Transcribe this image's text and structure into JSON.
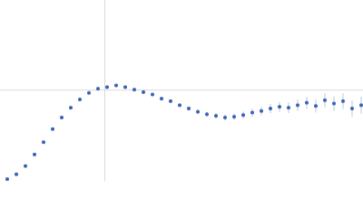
{
  "chart_data": {
    "type": "scatter",
    "xlim": [
      0,
      6
    ],
    "ylim": [
      0,
      2.2
    ],
    "xgrid": [
      1.732
    ],
    "ygrid": [
      1.104
    ],
    "grid": true,
    "series": [
      {
        "color": "#3a64b8",
        "error_color": "#a9bbdc",
        "x": [
          0.12,
          0.27,
          0.42,
          0.57,
          0.72,
          0.87,
          1.02,
          1.17,
          1.32,
          1.47,
          1.62,
          1.77,
          1.92,
          2.07,
          2.22,
          2.37,
          2.52,
          2.67,
          2.82,
          2.97,
          3.12,
          3.27,
          3.42,
          3.57,
          3.72,
          3.87,
          4.02,
          4.17,
          4.32,
          4.47,
          4.62,
          4.77,
          4.92,
          5.07,
          5.22,
          5.37,
          5.52,
          5.67,
          5.82,
          5.97
        ],
        "values": [
          0.02,
          0.08,
          0.18,
          0.32,
          0.47,
          0.63,
          0.77,
          0.89,
          0.99,
          1.07,
          1.12,
          1.14,
          1.16,
          1.14,
          1.11,
          1.08,
          1.05,
          1.0,
          0.97,
          0.92,
          0.88,
          0.84,
          0.81,
          0.79,
          0.77,
          0.78,
          0.8,
          0.83,
          0.85,
          0.88,
          0.9,
          0.89,
          0.92,
          0.95,
          0.91,
          0.98,
          0.94,
          0.97,
          0.88,
          0.92
        ],
        "errors": [
          0.005,
          0.005,
          0.005,
          0.005,
          0.005,
          0.005,
          0.005,
          0.006,
          0.006,
          0.007,
          0.008,
          0.009,
          0.01,
          0.011,
          0.012,
          0.014,
          0.016,
          0.018,
          0.02,
          0.022,
          0.024,
          0.027,
          0.03,
          0.033,
          0.036,
          0.04,
          0.044,
          0.048,
          0.052,
          0.056,
          0.06,
          0.065,
          0.07,
          0.075,
          0.08,
          0.085,
          0.09,
          0.095,
          0.1,
          0.105
        ]
      }
    ]
  }
}
